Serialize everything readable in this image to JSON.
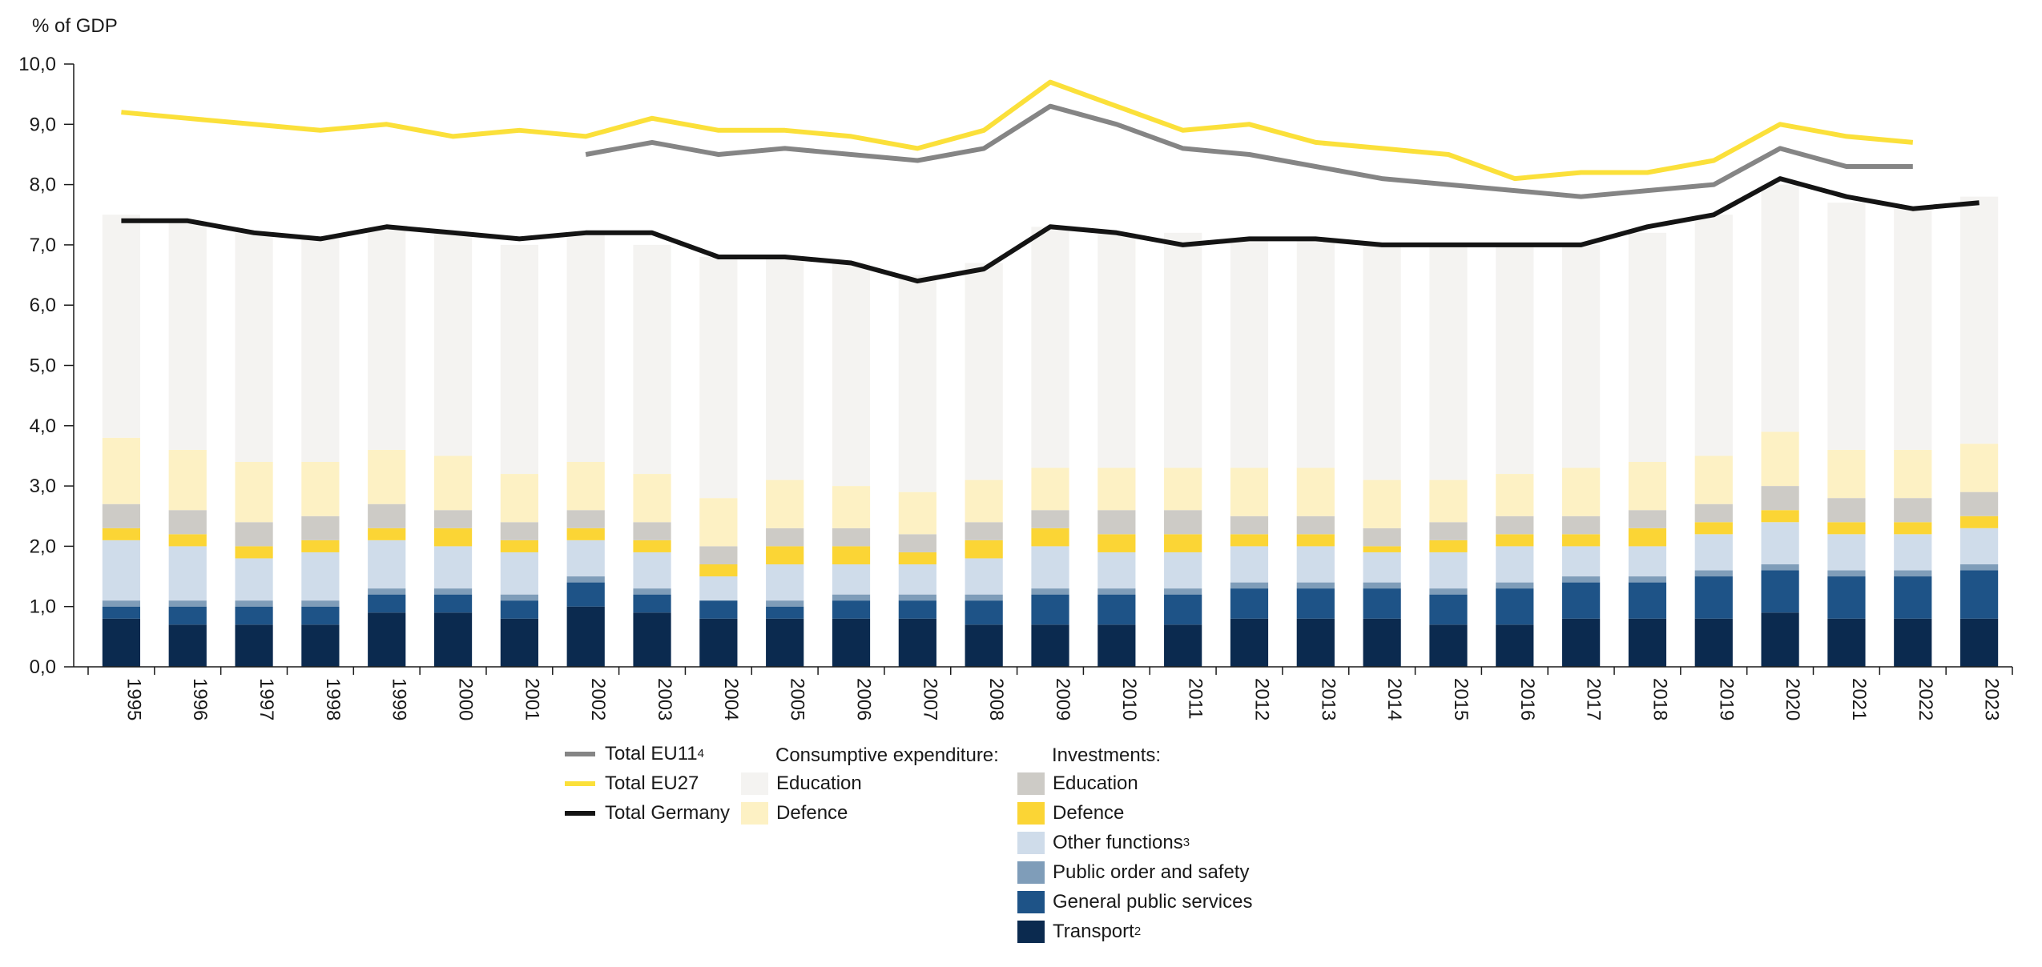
{
  "chart_data": {
    "type": "bar",
    "stacked": true,
    "title": "",
    "ylabel": "% of GDP",
    "xlabel": "",
    "ylim": [
      0,
      10
    ],
    "yticks": [
      "0,0",
      "1,0",
      "2,0",
      "3,0",
      "4,0",
      "5,0",
      "6,0",
      "7,0",
      "8,0",
      "9,0",
      "10,0"
    ],
    "categories": [
      "1995",
      "1996",
      "1997",
      "1998",
      "1999",
      "2000",
      "2001",
      "2002",
      "2003",
      "2004",
      "2005",
      "2006",
      "2007",
      "2008",
      "2009",
      "2010",
      "2011",
      "2012",
      "2013",
      "2014",
      "2015",
      "2016",
      "2017",
      "2018",
      "2019",
      "2020",
      "2021",
      "2022",
      "2023"
    ],
    "series": [
      {
        "key": "transport",
        "name": "Transport",
        "sup": "2",
        "color": "#0b2a4f",
        "values": [
          0.8,
          0.7,
          0.7,
          0.7,
          0.9,
          0.9,
          0.8,
          1.0,
          0.9,
          0.8,
          0.8,
          0.8,
          0.8,
          0.7,
          0.7,
          0.7,
          0.7,
          0.8,
          0.8,
          0.8,
          0.7,
          0.7,
          0.8,
          0.8,
          0.8,
          0.9,
          0.8,
          0.8,
          0.8
        ]
      },
      {
        "key": "general",
        "name": "General public services",
        "sup": "",
        "color": "#1e5387",
        "values": [
          0.2,
          0.3,
          0.3,
          0.3,
          0.3,
          0.3,
          0.3,
          0.4,
          0.3,
          0.3,
          0.2,
          0.3,
          0.3,
          0.4,
          0.5,
          0.5,
          0.5,
          0.5,
          0.5,
          0.5,
          0.5,
          0.6,
          0.6,
          0.6,
          0.7,
          0.7,
          0.7,
          0.7,
          0.8
        ]
      },
      {
        "key": "public_order",
        "name": "Public order and safety",
        "sup": "",
        "color": "#7f9db9",
        "values": [
          0.1,
          0.1,
          0.1,
          0.1,
          0.1,
          0.1,
          0.1,
          0.1,
          0.1,
          0.0,
          0.1,
          0.1,
          0.1,
          0.1,
          0.1,
          0.1,
          0.1,
          0.1,
          0.1,
          0.1,
          0.1,
          0.1,
          0.1,
          0.1,
          0.1,
          0.1,
          0.1,
          0.1,
          0.1
        ]
      },
      {
        "key": "other",
        "name": "Other functions",
        "sup": "3",
        "color": "#cfdcea",
        "values": [
          1.0,
          0.9,
          0.7,
          0.8,
          0.8,
          0.7,
          0.7,
          0.6,
          0.6,
          0.4,
          0.6,
          0.5,
          0.5,
          0.6,
          0.7,
          0.6,
          0.6,
          0.6,
          0.6,
          0.5,
          0.6,
          0.6,
          0.5,
          0.5,
          0.6,
          0.7,
          0.6,
          0.6,
          0.6
        ]
      },
      {
        "key": "inv_defence",
        "name": "Defence",
        "sup": "",
        "color": "#fbd535",
        "values": [
          0.2,
          0.2,
          0.2,
          0.2,
          0.2,
          0.3,
          0.2,
          0.2,
          0.2,
          0.2,
          0.3,
          0.3,
          0.2,
          0.3,
          0.3,
          0.3,
          0.3,
          0.2,
          0.2,
          0.1,
          0.2,
          0.2,
          0.2,
          0.3,
          0.2,
          0.2,
          0.2,
          0.2,
          0.2
        ]
      },
      {
        "key": "inv_education",
        "name": "Education",
        "sup": "",
        "color": "#cdcbc6",
        "values": [
          0.4,
          0.4,
          0.4,
          0.4,
          0.4,
          0.3,
          0.3,
          0.3,
          0.3,
          0.3,
          0.3,
          0.3,
          0.3,
          0.3,
          0.3,
          0.4,
          0.4,
          0.3,
          0.3,
          0.3,
          0.3,
          0.3,
          0.3,
          0.3,
          0.3,
          0.4,
          0.4,
          0.4,
          0.4
        ]
      },
      {
        "key": "cons_defence",
        "name": "Defence",
        "sup": "",
        "color": "#fdf1c4",
        "values": [
          1.1,
          1.0,
          1.0,
          0.9,
          0.9,
          0.9,
          0.8,
          0.8,
          0.8,
          0.8,
          0.8,
          0.7,
          0.7,
          0.7,
          0.7,
          0.7,
          0.7,
          0.8,
          0.8,
          0.8,
          0.7,
          0.7,
          0.8,
          0.8,
          0.8,
          0.9,
          0.8,
          0.8,
          0.8
        ]
      },
      {
        "key": "cons_education",
        "name": "Education",
        "sup": "",
        "color": "#f4f3f1",
        "values": [
          3.7,
          3.8,
          3.8,
          3.7,
          3.7,
          3.7,
          3.8,
          3.8,
          3.8,
          4.0,
          3.7,
          3.7,
          3.6,
          3.6,
          4.0,
          3.9,
          3.9,
          3.8,
          3.8,
          3.9,
          3.9,
          3.8,
          3.7,
          3.8,
          4.0,
          4.1,
          4.1,
          4.0,
          4.1
        ]
      }
    ],
    "lines": [
      {
        "key": "eu11",
        "name": "Total EU11",
        "sup": "4",
        "color": "#858585",
        "values": [
          null,
          null,
          null,
          null,
          null,
          null,
          null,
          8.5,
          8.7,
          8.5,
          8.6,
          8.5,
          8.4,
          8.6,
          9.3,
          9.0,
          8.6,
          8.5,
          8.3,
          8.1,
          8.0,
          7.9,
          7.8,
          7.9,
          8.0,
          8.6,
          8.3,
          8.3,
          null
        ]
      },
      {
        "key": "eu27",
        "name": "Total EU27",
        "sup": "",
        "color": "#fbe03a",
        "values": [
          9.2,
          9.1,
          9.0,
          8.9,
          9.0,
          8.8,
          8.9,
          8.8,
          9.1,
          8.9,
          8.9,
          8.8,
          8.6,
          8.9,
          9.7,
          9.3,
          8.9,
          9.0,
          8.7,
          8.6,
          8.5,
          8.1,
          8.2,
          8.2,
          8.4,
          9.0,
          8.8,
          8.7,
          null
        ]
      },
      {
        "key": "germany",
        "name": "Total Germany",
        "sup": "",
        "color": "#141414",
        "values": [
          7.4,
          7.4,
          7.2,
          7.1,
          7.3,
          7.2,
          7.1,
          7.2,
          7.2,
          6.8,
          6.8,
          6.7,
          6.4,
          6.6,
          7.3,
          7.2,
          7.0,
          7.1,
          7.1,
          7.0,
          7.0,
          7.0,
          7.0,
          7.3,
          7.5,
          8.1,
          7.8,
          7.6,
          7.7
        ]
      }
    ]
  },
  "legend": {
    "consumptive_heading": "Consumptive expenditure:",
    "investments_heading": "Investments:"
  }
}
